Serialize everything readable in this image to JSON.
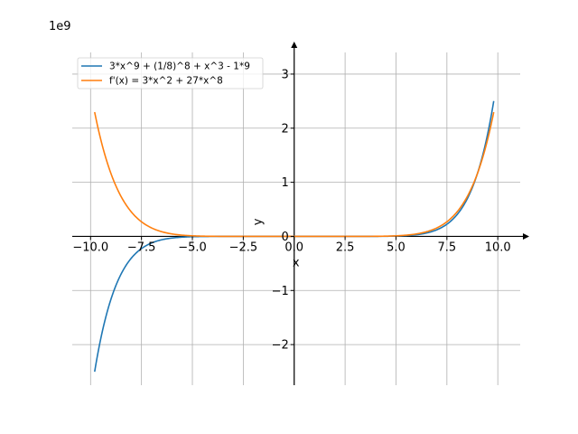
{
  "chart_data": {
    "type": "line",
    "x_unit": "x",
    "y_unit": "y",
    "y_offset_text": "1e9",
    "xlabel": "x",
    "ylabel": "y",
    "xlim": [
      -10.9,
      11.1
    ],
    "ylim": [
      -2.75,
      3.4
    ],
    "grid": true,
    "legend_position": "top-left",
    "x_ticks": [
      -10.0,
      -7.5,
      -5.0,
      -2.5,
      0.0,
      2.5,
      5.0,
      7.5,
      10.0
    ],
    "x_tick_labels": [
      "−10.0",
      "−7.5",
      "−5.0",
      "−2.5",
      "0.0",
      "2.5",
      "5.0",
      "7.5",
      "10.0"
    ],
    "y_ticks": [
      -2,
      -1,
      0,
      1,
      2,
      3
    ],
    "y_tick_labels": [
      "−2",
      "−1",
      "0",
      "1",
      "2",
      "3"
    ],
    "x_range": [
      -9.8,
      9.8
    ],
    "series": [
      {
        "name": "3*x^9 + (1/8)^8 + x^3 - 1*9",
        "color": "#1f77b4",
        "formula": "3*x^9 + (1/8)^8 + x^3 - 9"
      },
      {
        "name": "f'(x) = 3*x^2 + 27*x^8",
        "color": "#ff7f0e",
        "formula": "3*x^2 + 27*x^8"
      }
    ]
  }
}
